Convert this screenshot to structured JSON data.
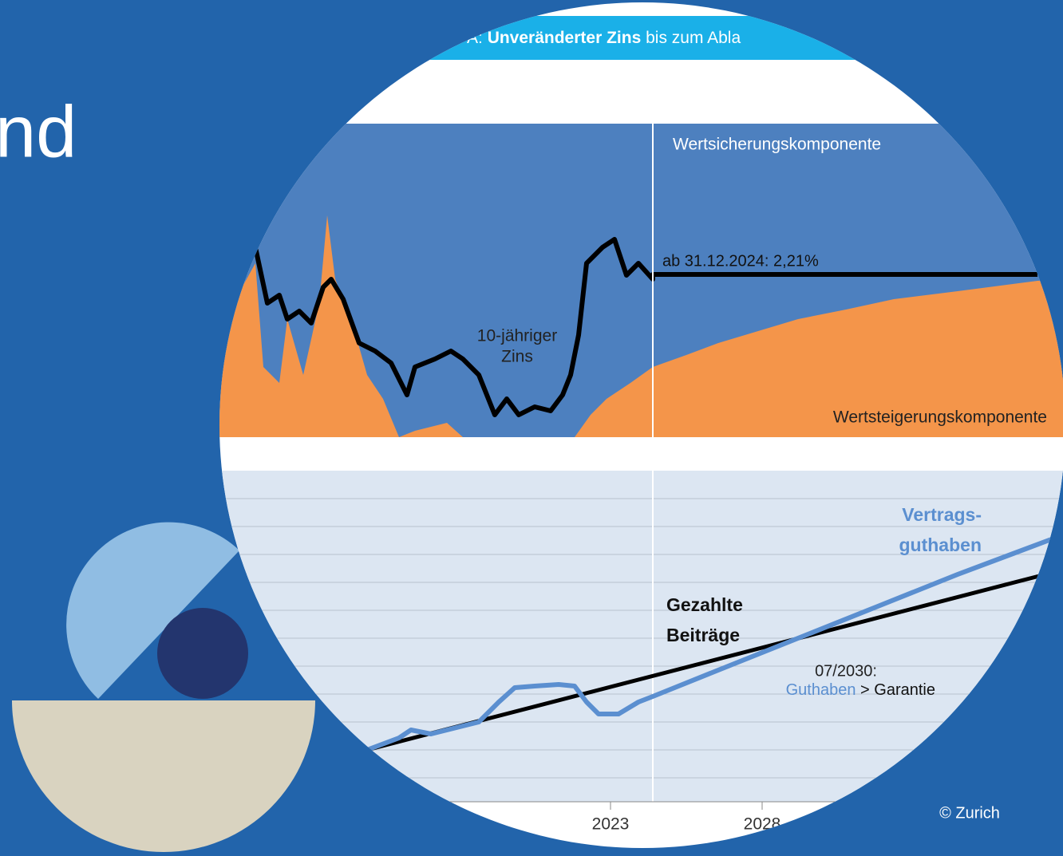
{
  "hero": {
    "heading": "nd",
    "credit": "© Zurich"
  },
  "graphic": {
    "banner": {
      "prefix": "A:",
      "bold": "Unveränderter Zins",
      "rest": "bis zum Abla"
    },
    "upper": {
      "top_label": "Wertsicherungskomponente",
      "rate_note": "ab 31.12.2024: 2,21%",
      "line_label_1": "10-jähriger",
      "line_label_2": "Zins",
      "bottom_label": "Wertsteigerungskomponente"
    },
    "lower": {
      "contract_1": "Vertrags-",
      "contract_2": "guthaben",
      "paid_1": "Gezahlte",
      "paid_2": "Beiträge",
      "date_note": "07/2030:",
      "balance": "Guthaben",
      "gt": ">",
      "guarantee": "Garantie"
    },
    "axis": [
      "2023",
      "2028"
    ]
  }
}
